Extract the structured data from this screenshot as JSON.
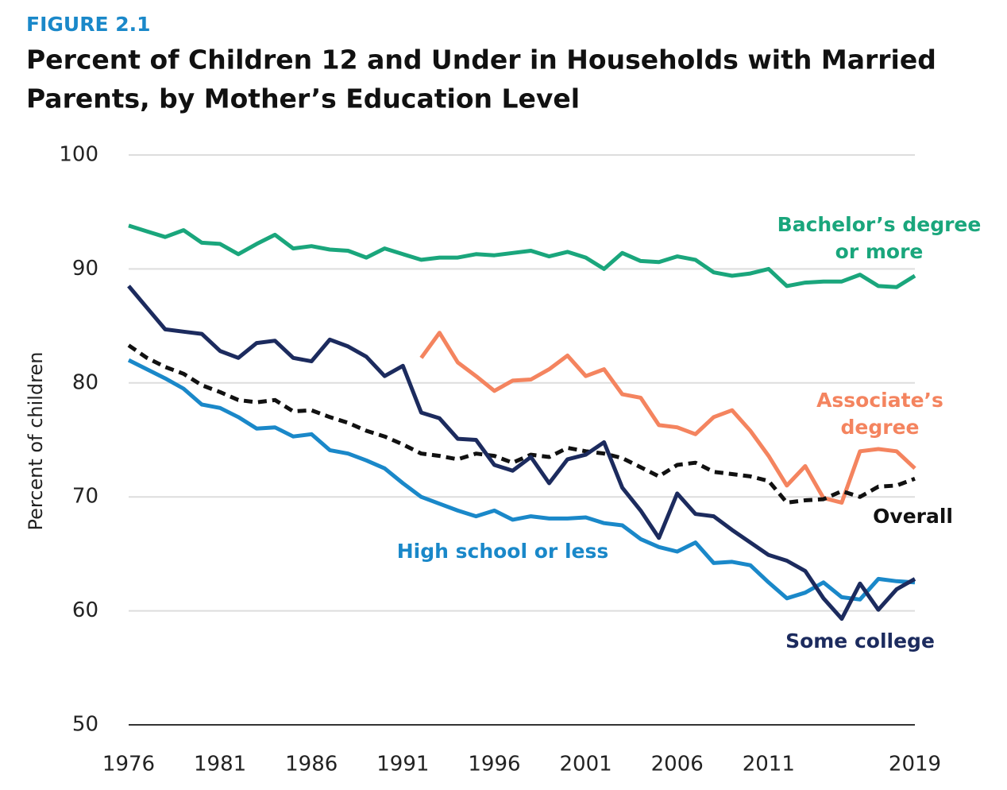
{
  "chart_data": {
    "type": "line",
    "figure_label": "FIGURE 2.1",
    "title": [
      "Percent of Children 12 and Under in Households with Married",
      "Parents, by Mother’s Education Level"
    ],
    "ylabel": "Percent of children",
    "x": [
      1976,
      1977,
      1978,
      1979,
      1980,
      1981,
      1982,
      1983,
      1984,
      1985,
      1986,
      1987,
      1988,
      1989,
      1990,
      1991,
      1992,
      1993,
      1994,
      1995,
      1996,
      1997,
      1998,
      1999,
      2000,
      2001,
      2002,
      2003,
      2004,
      2005,
      2006,
      2007,
      2008,
      2009,
      2010,
      2011,
      2012,
      2013,
      2014,
      2015,
      2016,
      2017,
      2018,
      2019
    ],
    "xlim": [
      1976,
      2019
    ],
    "xticks": [
      1976,
      1981,
      1986,
      1991,
      1996,
      2001,
      2006,
      2011,
      2019
    ],
    "ylim": [
      50,
      100
    ],
    "yticks": [
      50,
      60,
      70,
      80,
      90,
      100
    ],
    "grid": true,
    "series": [
      {
        "name": [
          "Bachelor’s degree",
          "or more"
        ],
        "color": "#1aa67c",
        "style": "solid",
        "values": [
          93.8,
          93.3,
          92.8,
          93.4,
          92.3,
          92.2,
          91.3,
          92.2,
          93.0,
          91.8,
          92.0,
          91.7,
          91.6,
          91.0,
          91.8,
          91.3,
          90.8,
          91.0,
          91.0,
          91.3,
          91.2,
          91.4,
          91.6,
          91.1,
          91.5,
          91.0,
          90.0,
          91.4,
          90.7,
          90.6,
          91.1,
          90.8,
          89.7,
          89.4,
          89.6,
          90.0,
          88.5,
          88.8,
          88.9,
          88.9,
          89.5,
          88.5,
          88.4,
          89.4
        ]
      },
      {
        "name": [
          "Associate’s",
          "degree"
        ],
        "color": "#f4845f",
        "style": "solid",
        "values": [
          null,
          null,
          null,
          null,
          null,
          null,
          null,
          null,
          null,
          null,
          null,
          null,
          null,
          null,
          null,
          null,
          82.2,
          84.4,
          81.8,
          80.6,
          79.3,
          80.2,
          80.3,
          81.2,
          82.4,
          80.6,
          81.2,
          79.0,
          78.7,
          76.3,
          76.1,
          75.5,
          77.0,
          77.6,
          75.8,
          73.6,
          71.0,
          72.7,
          69.9,
          69.5,
          74.0,
          74.2,
          74.0,
          72.5
        ]
      },
      {
        "name": [
          "Overall"
        ],
        "color": "#111111",
        "style": "dashed",
        "values": [
          83.3,
          82.2,
          81.4,
          80.8,
          79.8,
          79.2,
          78.5,
          78.3,
          78.5,
          77.5,
          77.6,
          77.0,
          76.5,
          75.8,
          75.3,
          74.6,
          73.8,
          73.6,
          73.3,
          73.8,
          73.6,
          73.0,
          73.7,
          73.5,
          74.3,
          74.0,
          73.8,
          73.4,
          72.6,
          71.8,
          72.8,
          73.0,
          72.2,
          72.0,
          71.8,
          71.4,
          69.5,
          69.7,
          69.8,
          70.5,
          70.0,
          70.9,
          71.0,
          71.6
        ]
      },
      {
        "name": [
          "High school or less"
        ],
        "color": "#1a88c9",
        "style": "solid",
        "values": [
          82.0,
          81.2,
          80.4,
          79.5,
          78.1,
          77.8,
          77.0,
          76.0,
          76.1,
          75.3,
          75.5,
          74.1,
          73.8,
          73.2,
          72.5,
          71.2,
          70.0,
          69.4,
          68.8,
          68.3,
          68.8,
          68.0,
          68.3,
          68.1,
          68.1,
          68.2,
          67.7,
          67.5,
          66.3,
          65.6,
          65.2,
          66.0,
          64.2,
          64.3,
          64.0,
          62.5,
          61.1,
          61.6,
          62.5,
          61.2,
          61.0,
          62.8,
          62.6,
          62.5
        ]
      },
      {
        "name": [
          "Some college"
        ],
        "color": "#1c2b5e",
        "style": "solid",
        "values": [
          88.5,
          86.6,
          84.7,
          84.5,
          84.3,
          82.8,
          82.2,
          83.5,
          83.7,
          82.2,
          81.9,
          83.8,
          83.2,
          82.3,
          80.6,
          81.5,
          77.4,
          76.9,
          75.1,
          75.0,
          72.8,
          72.3,
          73.5,
          71.2,
          73.3,
          73.7,
          74.8,
          70.8,
          68.8,
          66.4,
          70.3,
          68.5,
          68.3,
          67.1,
          66.0,
          64.9,
          64.4,
          63.5,
          61.1,
          59.3,
          62.4,
          60.1,
          61.9,
          62.8
        ]
      }
    ]
  }
}
